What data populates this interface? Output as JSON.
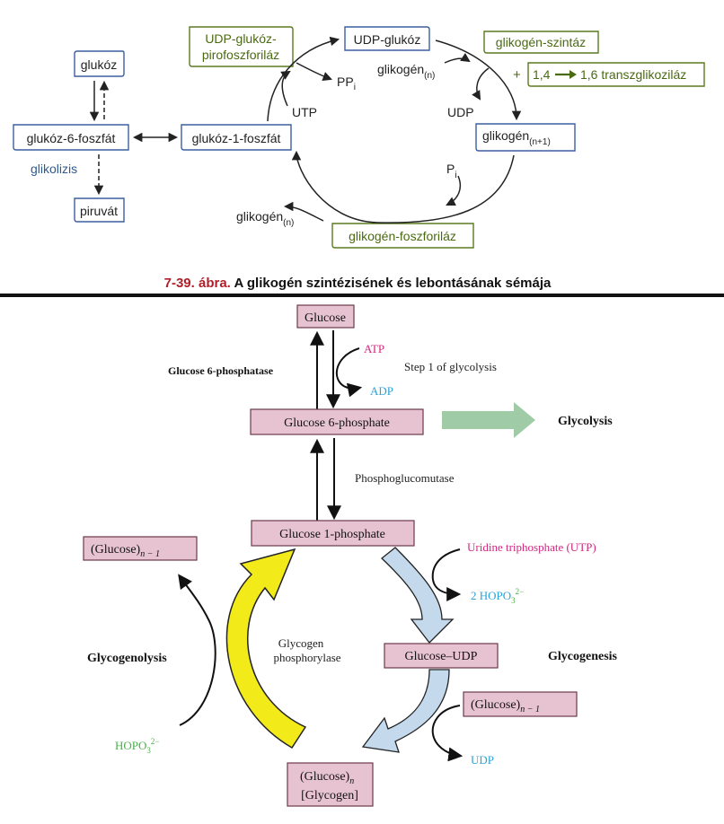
{
  "top": {
    "nodes": {
      "glukoz": "glukóz",
      "g6p": "glukóz-6-foszfát",
      "g1p": "glukóz-1-foszfát",
      "piruvat": "piruvát",
      "udpglukoz": "UDP-glukóz",
      "glikogen_n1": "glikogén",
      "glikogen_n1_sub": "(n+1)"
    },
    "enzymes": {
      "udp_pp_line1": "UDP-glukóz-",
      "udp_pp_line2": "pirofoszforiláz",
      "synthase": "glikogén-szintáz",
      "branching_plus": "+",
      "branching_left": "1,4",
      "branching_right": "1,6 transzglikoziláz",
      "phosphorylase": "glikogén-foszforiláz"
    },
    "labels": {
      "glikolizis": "glikolizis",
      "ppi": "PP",
      "ppi_sub": "i",
      "utp": "UTP",
      "glikogen_n_top": "glikogén",
      "glikogen_n_top_sub": "(n)",
      "udp": "UDP",
      "pi": "P",
      "pi_sub": "i",
      "glikogen_n_bottom": "glikogén",
      "glikogen_n_bottom_sub": "(n)"
    },
    "caption_num": "7-39. ábra.",
    "caption_text": " A glikogén szintézisének és lebontásának sémája",
    "colors": {
      "node_border": "#3b5fa0",
      "enzyme_border": "#5a7a1e",
      "enzyme_text": "#4a6a12",
      "glikolizis": "#2f5a8f",
      "caption_num": "#b0202a",
      "arrow": "#222222"
    }
  },
  "bottom": {
    "boxes": {
      "glucose": "Glucose",
      "g6p": "Glucose 6-phosphate",
      "g1p": "Glucose 1-phosphate",
      "glucose_n1_left": "(Glucose)",
      "glucose_n1_left_sub": "n − 1",
      "glucose_udp": "Glucose–UDP",
      "glucose_n1_right": "(Glucose)",
      "glucose_n1_right_sub": "n − 1",
      "glycogen_line1": "(Glucose)",
      "glycogen_line1_sub": "n",
      "glycogen_line2": "[Glycogen]"
    },
    "labels": {
      "g6pase": "Glucose 6-phosphatase",
      "atp": "ATP",
      "adp": "ADP",
      "step1": "Step 1 of glycolysis",
      "glycolysis": "Glycolysis",
      "pgm": "Phosphoglucomutase",
      "utp": "Uridine triphosphate (UTP)",
      "hopo_right_prefix": "2 HOPO",
      "hopo_right_sub": "3",
      "hopo_right_sup": "2−",
      "glycogenolysis": "Glycogenolysis",
      "glycogenesis": "Glycogenesis",
      "phosphorylase_line1": "Glycogen",
      "phosphorylase_line2": "phosphorylase",
      "hopo_left_prefix": "HOPO",
      "hopo_left_sub": "3",
      "hopo_left_sup": "2−",
      "udp": "UDP"
    },
    "colors": {
      "box_fill": "#e7c3d2",
      "box_border": "#6a3a4a",
      "magenta": "#d1297f",
      "cyan": "#2aa3d8",
      "green": "#4bb04a",
      "glycolysis_arrow": "#9fcca6",
      "yellow_arrow": "#f3ea1a",
      "blue_arrow": "#c4d9ec",
      "arrow": "#111111"
    }
  }
}
